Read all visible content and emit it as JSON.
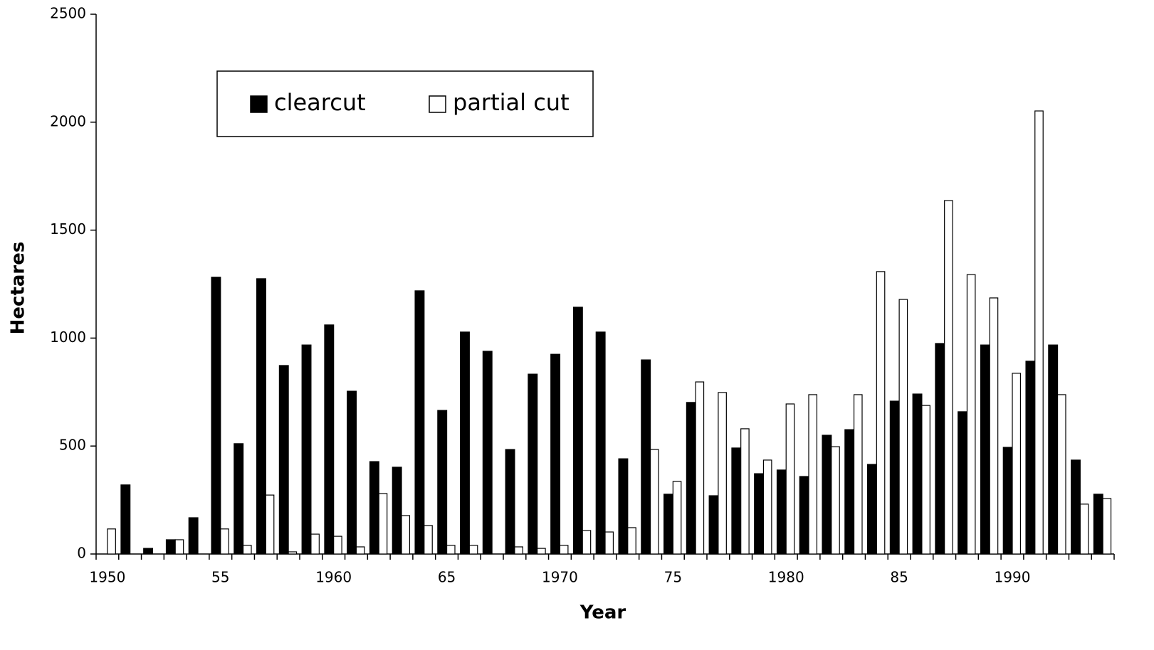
{
  "chart_data": {
    "type": "bar",
    "x_label": "Year",
    "y_label": "Hectares",
    "categories": [
      "1950",
      null,
      null,
      null,
      null,
      "55",
      null,
      null,
      null,
      null,
      "1960",
      null,
      null,
      null,
      null,
      "65",
      null,
      null,
      null,
      null,
      "1970",
      null,
      null,
      null,
      null,
      "75",
      null,
      null,
      null,
      null,
      "1980",
      null,
      null,
      null,
      null,
      "85",
      null,
      null,
      null,
      null,
      "1990",
      null,
      null,
      null,
      null
    ],
    "series": [
      {
        "name": "clearcut",
        "color": "#000000",
        "values": [
          0,
          320,
          26,
          66,
          168,
          1282,
          511,
          1275,
          873,
          968,
          1061,
          754,
          428,
          402,
          1219,
          665,
          1028,
          939,
          484,
          833,
          925,
          1143,
          1028,
          441,
          899,
          277,
          702,
          270,
          491,
          372,
          389,
          359,
          550,
          576,
          415,
          708,
          741,
          975,
          659,
          968,
          494,
          893,
          968,
          435,
          277
        ]
      },
      {
        "name": "partial cut",
        "color": "#ffffff",
        "values": [
          116,
          0,
          0,
          66,
          0,
          116,
          40,
          273,
          10,
          92,
          82,
          33,
          280,
          178,
          132,
          40,
          40,
          0,
          33,
          26,
          40,
          109,
          102,
          122,
          484,
          336,
          797,
          748,
          580,
          435,
          695,
          738,
          497,
          738,
          1308,
          1179,
          688,
          1637,
          1294,
          1186,
          837,
          2052,
          738,
          231,
          257
        ]
      }
    ],
    "ylim": [
      0,
      2500
    ],
    "yticks": [
      0,
      500,
      1000,
      1500,
      2000,
      2500
    ],
    "grid": false,
    "legend": "top-left"
  }
}
